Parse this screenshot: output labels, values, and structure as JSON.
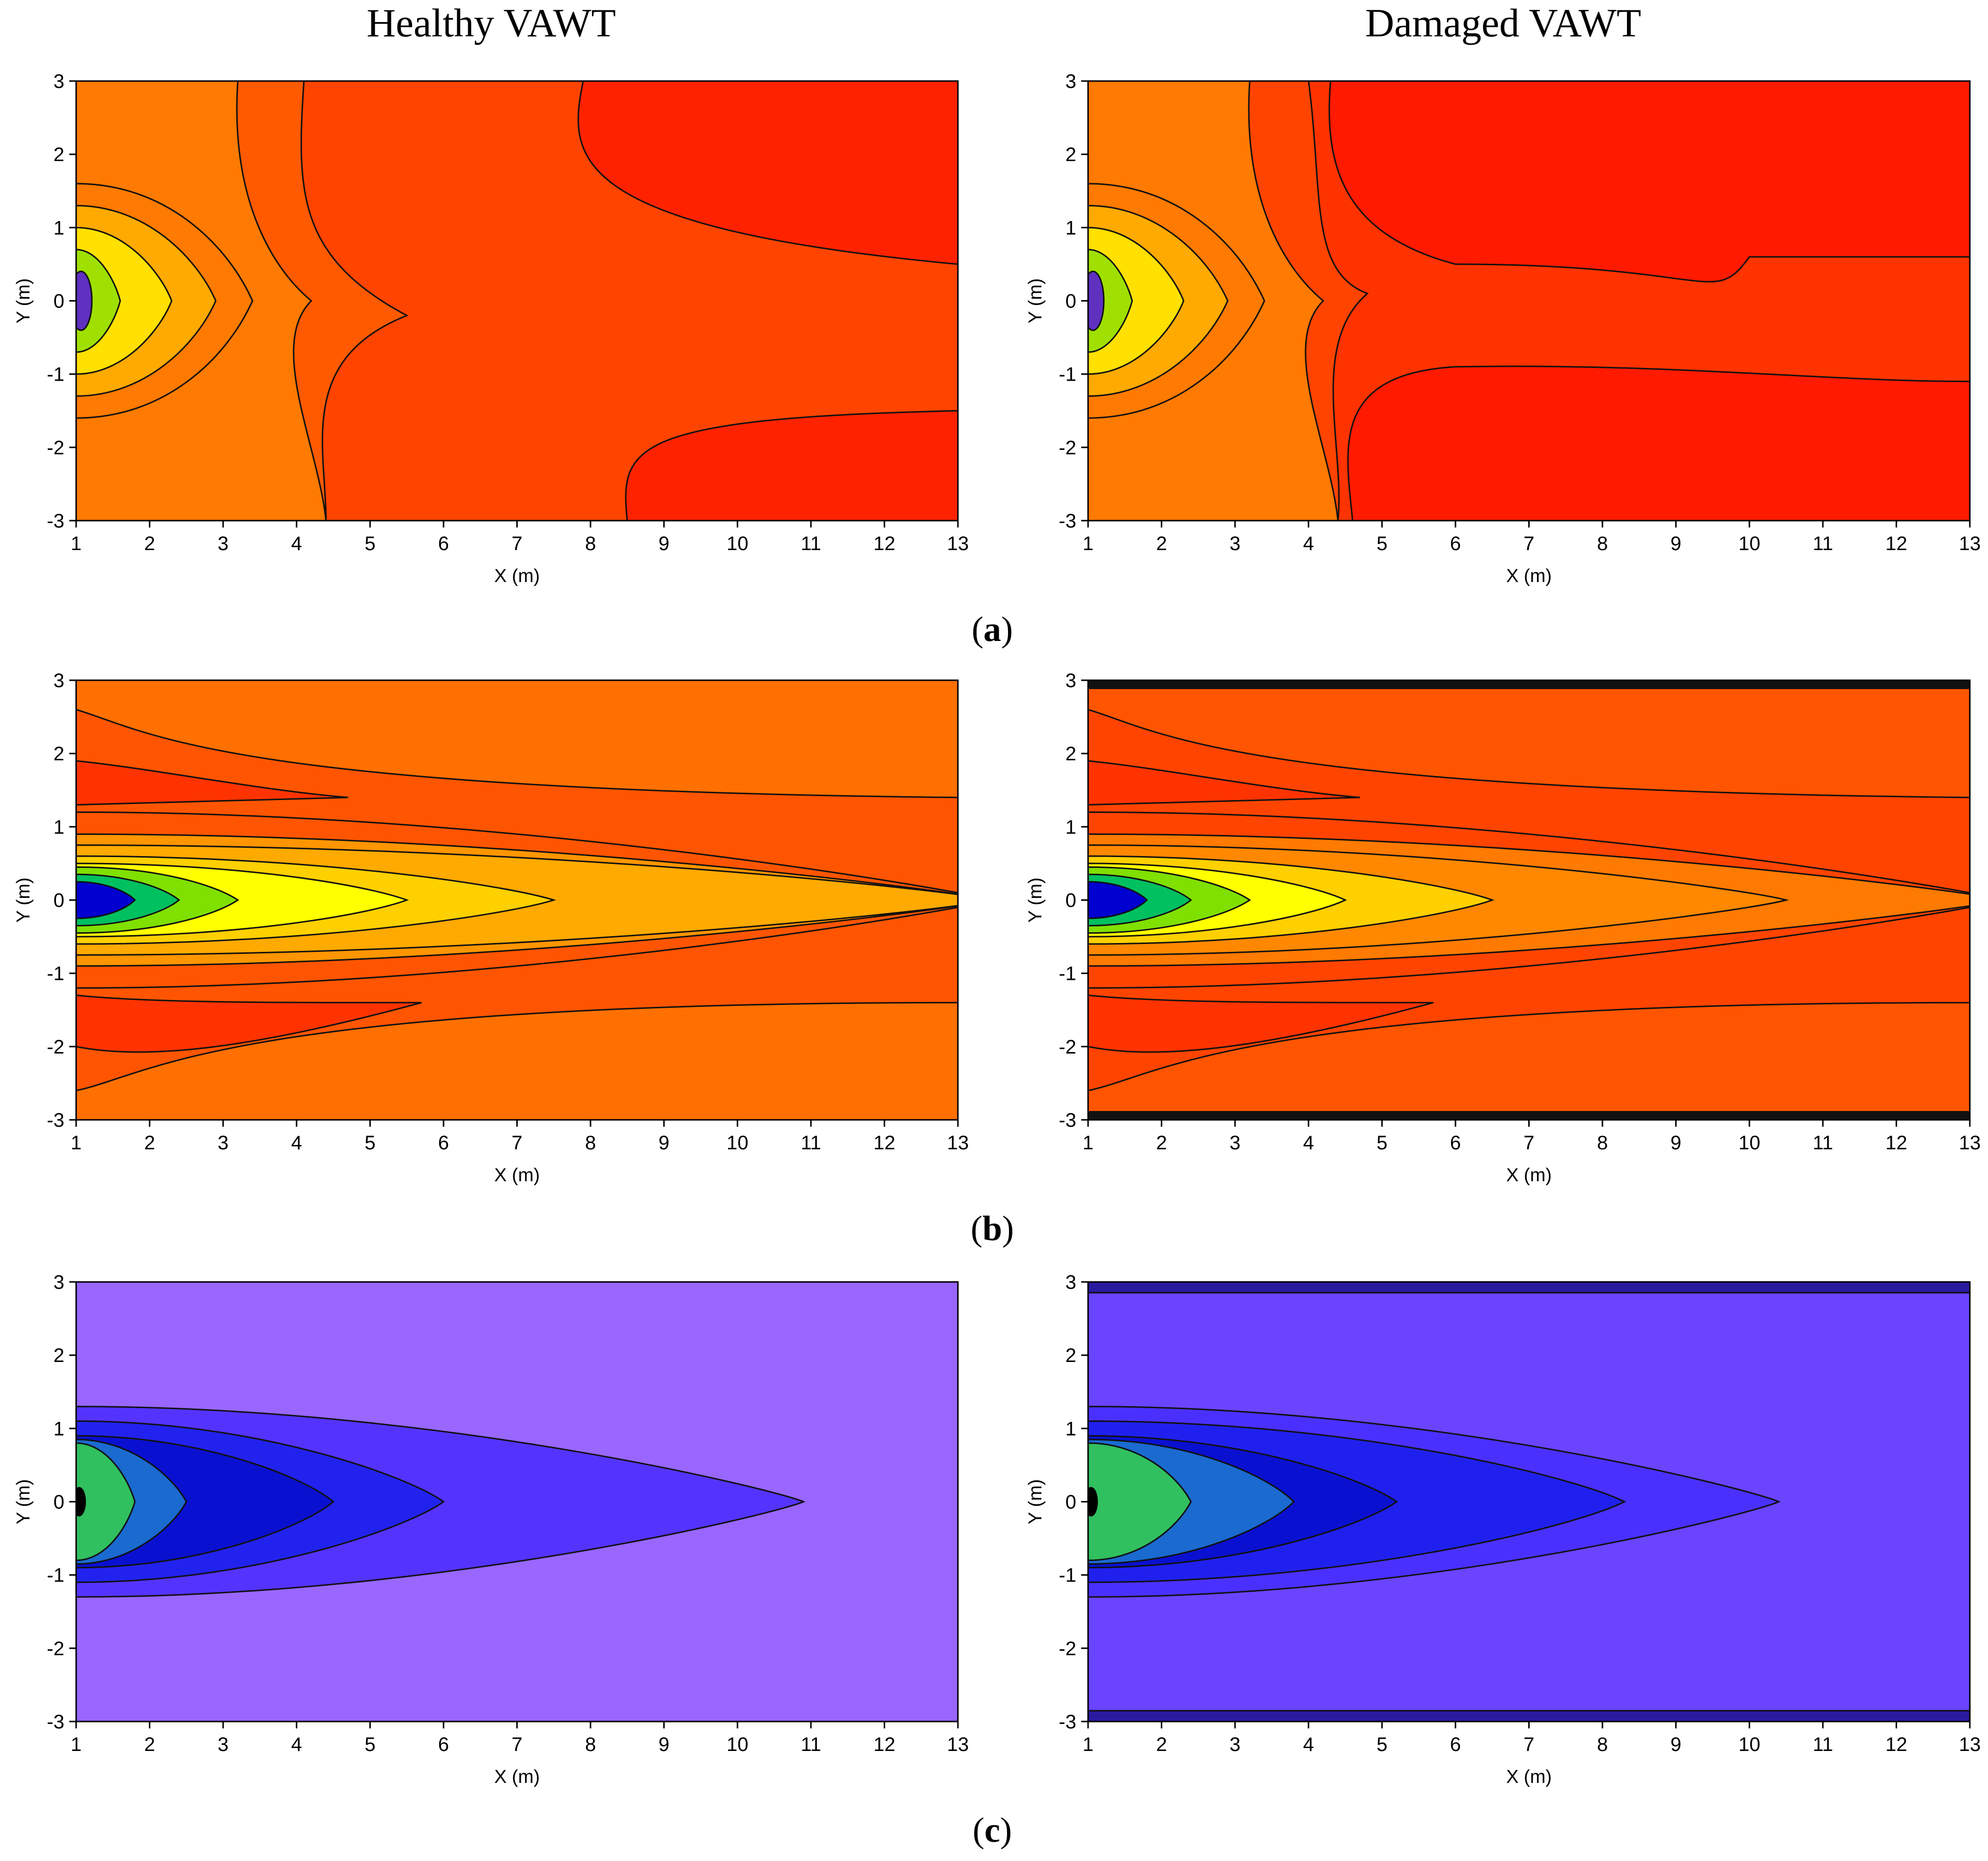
{
  "titles": {
    "left": "Healthy VAWT",
    "right": "Damaged VAWT"
  },
  "row_labels": [
    "a",
    "b",
    "c"
  ],
  "chart_data": [
    {
      "type": "contour",
      "row": "a",
      "column": "Healthy VAWT",
      "xlabel": "X (m)",
      "ylabel": "Y (m)",
      "xlim": [
        1,
        13
      ],
      "ylim": [
        -3,
        3
      ],
      "xticks": [
        "1",
        "2",
        "3",
        "4",
        "5",
        "6",
        "7",
        "8",
        "9",
        "10",
        "11",
        "12",
        "13"
      ],
      "yticks": [
        "3",
        "2",
        "1",
        "0",
        "-1",
        "-2",
        "-3"
      ],
      "colors": {
        "background": "#ff7a00",
        "band1": "#ff5a00",
        "band2": "#ff4400",
        "band3": "#ff2200",
        "core": "#ffe000",
        "inner": "#a0e000",
        "hub": "#6030c0"
      }
    },
    {
      "type": "contour",
      "row": "a",
      "column": "Damaged VAWT",
      "xlabel": "X (m)",
      "ylabel": "Y (m)",
      "xlim": [
        1,
        13
      ],
      "ylim": [
        -3,
        3
      ],
      "xticks": [
        "1",
        "2",
        "3",
        "4",
        "5",
        "6",
        "7",
        "8",
        "9",
        "10",
        "11",
        "12",
        "13"
      ],
      "yticks": [
        "3",
        "2",
        "1",
        "0",
        "-1",
        "-2",
        "-3"
      ],
      "colors": {
        "background": "#ff7a00",
        "band1": "#ff4400",
        "band2": "#ff3300",
        "band3": "#ff1a00",
        "core": "#ffe000",
        "inner": "#a0e000",
        "hub": "#6030c0"
      }
    },
    {
      "type": "contour",
      "row": "b",
      "column": "Healthy VAWT",
      "xlabel": "X (m)",
      "ylabel": "Y (m)",
      "xlim": [
        1,
        13
      ],
      "ylim": [
        -3,
        3
      ],
      "xticks": [
        "1",
        "2",
        "3",
        "4",
        "5",
        "6",
        "7",
        "8",
        "9",
        "10",
        "11",
        "12",
        "13"
      ],
      "yticks": [
        "3",
        "2",
        "1",
        "0",
        "-1",
        "-2",
        "-3"
      ],
      "colors": {
        "background": "#ff7000",
        "band1": "#ff5500",
        "band2": "#ff3300",
        "band3": "#ffaa00",
        "core": "#ffff00",
        "inner": "#00c060",
        "hub": "#0000d0"
      }
    },
    {
      "type": "contour",
      "row": "b",
      "column": "Damaged VAWT",
      "xlabel": "X (m)",
      "ylabel": "Y (m)",
      "xlim": [
        1,
        13
      ],
      "ylim": [
        -3,
        3
      ],
      "xticks": [
        "1",
        "2",
        "3",
        "4",
        "5",
        "6",
        "7",
        "8",
        "9",
        "10",
        "11",
        "12",
        "13"
      ],
      "yticks": [
        "3",
        "2",
        "1",
        "0",
        "-1",
        "-2",
        "-3"
      ],
      "colors": {
        "background": "#ff5500",
        "band1": "#ff4400",
        "band2": "#ff3300",
        "band3": "#ff8800",
        "core": "#ffff00",
        "inner": "#00c060",
        "hub": "#0000d0"
      }
    },
    {
      "type": "contour",
      "row": "c",
      "column": "Healthy VAWT",
      "xlabel": "X (m)",
      "ylabel": "Y (m)",
      "xlim": [
        1,
        13
      ],
      "ylim": [
        -3,
        3
      ],
      "xticks": [
        "1",
        "2",
        "3",
        "4",
        "5",
        "6",
        "7",
        "8",
        "9",
        "10",
        "11",
        "12",
        "13"
      ],
      "yticks": [
        "3",
        "2",
        "1",
        "0",
        "-1",
        "-2",
        "-3"
      ],
      "colors": {
        "background": "#9966ff",
        "band1": "#5533ff",
        "band2": "#2222ee",
        "band3": "#0a10d0",
        "core": "#1a6ad0",
        "inner": "#30c060",
        "hub": "#000000"
      }
    },
    {
      "type": "contour",
      "row": "c",
      "column": "Damaged VAWT",
      "xlabel": "X (m)",
      "ylabel": "Y (m)",
      "xlim": [
        1,
        13
      ],
      "ylim": [
        -3,
        3
      ],
      "xticks": [
        "1",
        "2",
        "3",
        "4",
        "5",
        "6",
        "7",
        "8",
        "9",
        "10",
        "11",
        "12",
        "13"
      ],
      "yticks": [
        "3",
        "2",
        "1",
        "0",
        "-1",
        "-2",
        "-3"
      ],
      "colors": {
        "background": "#6a44ff",
        "band1": "#4a30ff",
        "band2": "#2020ee",
        "band3": "#0a10d0",
        "core": "#1a6ad0",
        "inner": "#30c060",
        "hub": "#000000"
      }
    }
  ]
}
